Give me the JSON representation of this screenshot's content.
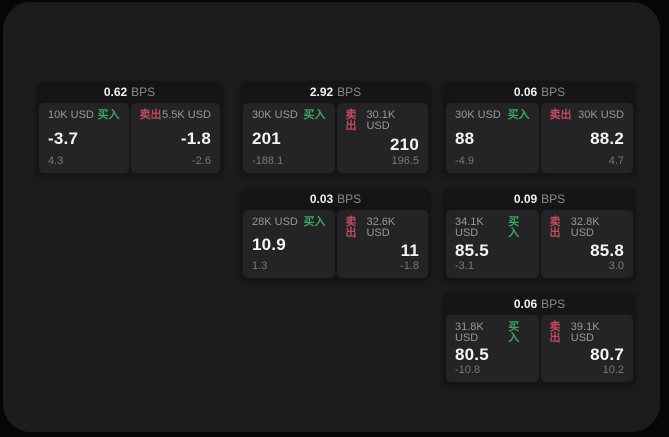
{
  "labels": {
    "bps_unit": "BPS",
    "buy": "买入",
    "sell": "卖出"
  },
  "colors": {
    "buy_green": "#3da55f",
    "sell_red": "#c14a5e",
    "window_bg": "#1c1c1e",
    "card_bg": "#151517",
    "tile_bg": "#242427"
  },
  "cards": [
    {
      "bps": "0.62",
      "buy": {
        "notional": "10K USD",
        "price": "-3.7",
        "change": "4.3"
      },
      "sell": {
        "notional": "5.5K USD",
        "price": "-1.8",
        "change": "-2.6"
      }
    },
    {
      "bps": "2.92",
      "buy": {
        "notional": "30K USD",
        "price": "201",
        "change": "-188.1"
      },
      "sell": {
        "notional": "30.1K USD",
        "price": "210",
        "change": "196.5"
      }
    },
    {
      "bps": "0.06",
      "buy": {
        "notional": "30K USD",
        "price": "88",
        "change": "-4.9"
      },
      "sell": {
        "notional": "30K USD",
        "price": "88.2",
        "change": "4.7"
      }
    },
    {
      "bps": "0.03",
      "buy": {
        "notional": "28K USD",
        "price": "10.9",
        "change": "1.3"
      },
      "sell": {
        "notional": "32.6K USD",
        "price": "11",
        "change": "-1.8"
      }
    },
    {
      "bps": "0.09",
      "buy": {
        "notional": "34.1K USD",
        "price": "85.5",
        "change": "-3.1"
      },
      "sell": {
        "notional": "32.8K USD",
        "price": "85.8",
        "change": "3.0"
      }
    },
    {
      "bps": "0.06",
      "buy": {
        "notional": "31.8K USD",
        "price": "80.5",
        "change": "-10.8"
      },
      "sell": {
        "notional": "39.1K USD",
        "price": "80.7",
        "change": "10.2"
      }
    }
  ]
}
